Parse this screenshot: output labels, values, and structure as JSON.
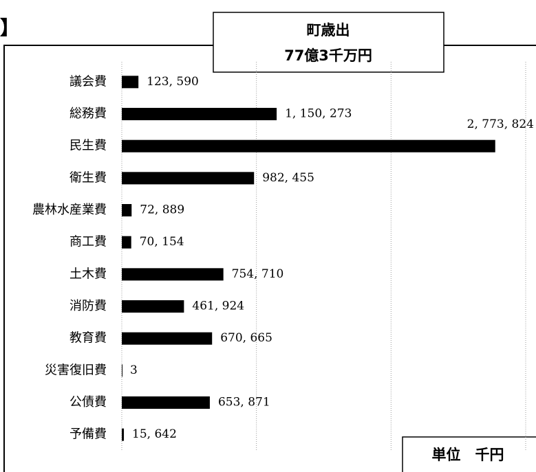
{
  "chart_data": {
    "type": "bar",
    "orientation": "horizontal",
    "fragment": "】",
    "title": "町歳出",
    "subtitle": "77億3千万円",
    "unit": "単位　千円",
    "categories": [
      "議会費",
      "総務費",
      "民生費",
      "衛生費",
      "農林水産業費",
      "商工費",
      "土木費",
      "消防費",
      "教育費",
      "災害復旧費",
      "公債費",
      "予備費"
    ],
    "values": [
      123590,
      1150273,
      2773824,
      982455,
      72889,
      70154,
      754710,
      461924,
      670665,
      3,
      653871,
      15642
    ],
    "value_labels": [
      "123, 590",
      "1, 150, 273",
      "2, 773, 824",
      "982, 455",
      "72, 889",
      "70, 154",
      "754, 710",
      "461, 924",
      "670, 665",
      "3",
      "653, 871",
      "15, 642"
    ],
    "color": "#000000",
    "xlim": [
      0,
      3000000
    ],
    "xticks": [
      0,
      1000000,
      2000000,
      3000000
    ],
    "grid": true
  }
}
